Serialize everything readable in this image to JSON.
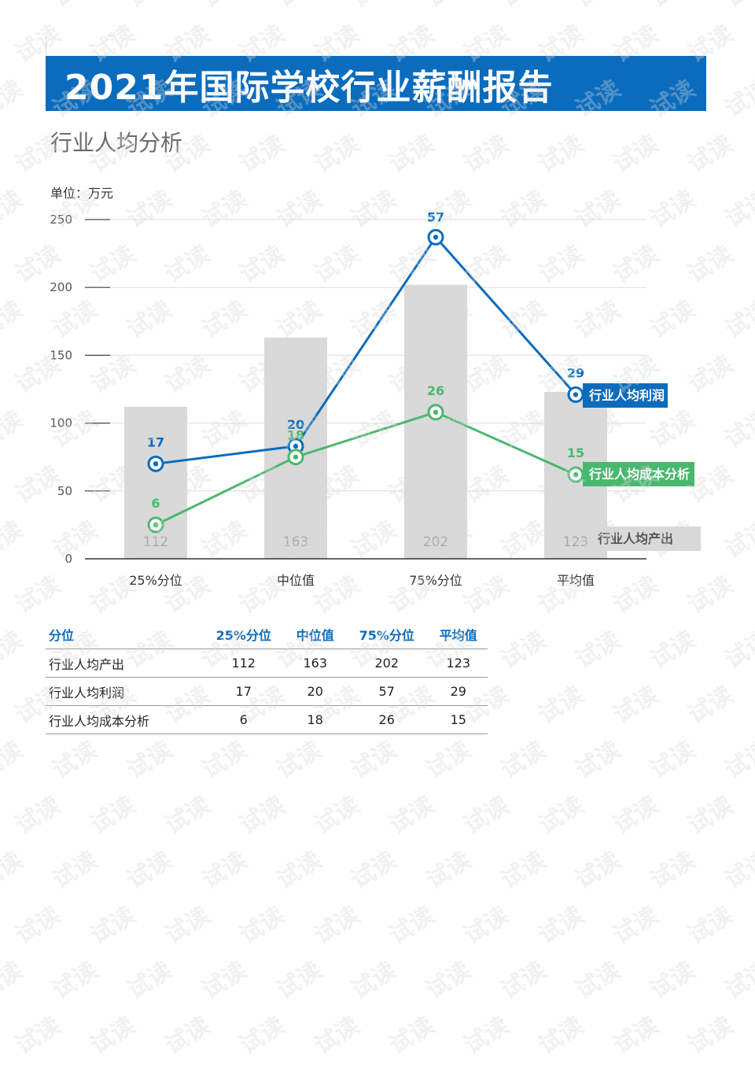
{
  "header": {
    "title": "2021年国际学校行业薪酬报告"
  },
  "section": {
    "subtitle": "行业人均分析"
  },
  "chart_data": {
    "type": "bar",
    "unit_label": "单位：万元",
    "categories": [
      "25%分位",
      "中位值",
      "75%分位",
      "平均值"
    ],
    "ylim": [
      0,
      250
    ],
    "yticks": [
      0,
      50,
      100,
      150,
      200,
      250
    ],
    "grid": true,
    "series": [
      {
        "name": "行业人均产出",
        "kind": "bar",
        "values": [
          112,
          163,
          202,
          123
        ],
        "color": "#d9d9d9",
        "label_color": "#a8a8a8"
      },
      {
        "name": "行业人均利润",
        "kind": "line",
        "values": [
          17,
          20,
          57,
          29
        ],
        "plot_y": [
          70,
          83,
          237,
          121
        ],
        "color": "#0b6cbd"
      },
      {
        "name": "行业人均成本分析",
        "kind": "line",
        "values": [
          6,
          18,
          26,
          15
        ],
        "plot_y": [
          25,
          75,
          108,
          62
        ],
        "color": "#49b86e"
      }
    ],
    "legend_placement": "right"
  },
  "table": {
    "headers": [
      "分位",
      "25%分位",
      "中位值",
      "75%分位",
      "平均值"
    ],
    "rows": [
      [
        "行业人均产出",
        "112",
        "163",
        "202",
        "123"
      ],
      [
        "行业人均利润",
        "17",
        "20",
        "57",
        "29"
      ],
      [
        "行业人均成本分析",
        "6",
        "18",
        "26",
        "15"
      ]
    ]
  },
  "watermark": {
    "text": "试读"
  }
}
